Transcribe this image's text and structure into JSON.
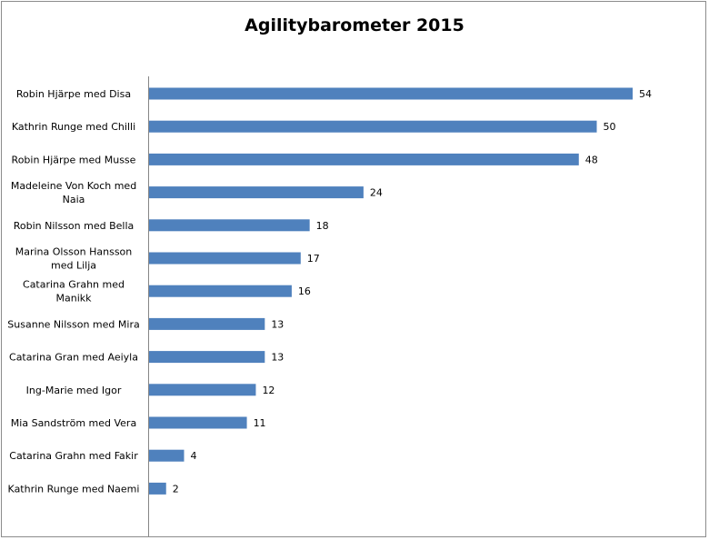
{
  "chart_data": {
    "type": "bar",
    "orientation": "horizontal",
    "title": "Agilitybarometer 2015",
    "xlabel": "",
    "ylabel": "",
    "xlim": [
      0,
      54
    ],
    "grid": false,
    "legend": "none",
    "bar_color": "#4f81bd",
    "categories": [
      [
        "Robin Hjärpe  med Disa"
      ],
      [
        "Kathrin Runge med Chilli"
      ],
      [
        "Robin Hjärpe  med Musse"
      ],
      [
        "Madeleine Von Koch med",
        "Naia"
      ],
      [
        "Robin Nilsson  med Bella"
      ],
      [
        "Marina Olsson Hansson",
        "med Lilja"
      ],
      [
        "Catarina Grahn med",
        "Manikk"
      ],
      [
        "Susanne Nilsson  med Mira"
      ],
      [
        "Catarina Gran med Aeiyla"
      ],
      [
        "Ing-Marie med Igor"
      ],
      [
        "Mia Sandström med Vera"
      ],
      [
        "Catarina Grahn med Fakir"
      ],
      [
        "Kathrin Runge med Naemi"
      ]
    ],
    "values": [
      54,
      50,
      48,
      24,
      18,
      17,
      16,
      13,
      13,
      12,
      11,
      4,
      2
    ]
  }
}
